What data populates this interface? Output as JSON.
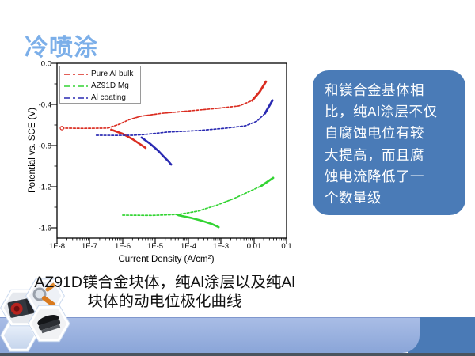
{
  "title": {
    "text": "冷喷涂",
    "color": "#7cafe9"
  },
  "chart_data": {
    "type": "line",
    "title": "",
    "ylabel": "Potential vs. SCE (V)",
    "xlabel_main": "Current Density (A/cm",
    "xlabel_sup": "2",
    "xlabel_close": ")",
    "x_scale": "log",
    "xlim": [
      1e-08,
      0.1
    ],
    "ylim": [
      -1.7,
      0
    ],
    "x_ticks": [
      "1E-8",
      "1E-7",
      "1E-6",
      "1E-5",
      "1E-4",
      "1E-3",
      "0.01",
      "0.1"
    ],
    "y_ticks": [
      "0.0",
      "-0.4",
      "-0.8",
      "-1.2",
      "-1.6"
    ],
    "grid": false,
    "legend_position": "top-left-inside",
    "legend": [
      {
        "label": "Pure Al bulk",
        "color": "#da2c20"
      },
      {
        "label": "AZ91D Mg",
        "color": "#33d433"
      },
      {
        "label": "Al coating",
        "color": "#2a2ab2"
      }
    ],
    "series": [
      {
        "name": "Pure Al bulk",
        "color": "#da2c20",
        "branches": [
          {
            "dash": true,
            "width": 1.7,
            "tip": 3,
            "start_marker": true,
            "points": [
              [
                -7.85,
                -0.63
              ],
              [
                -7.2,
                -0.632
              ],
              [
                -6.45,
                -0.63
              ],
              [
                -6.1,
                -0.592
              ],
              [
                -5.8,
                -0.548
              ],
              [
                -5.45,
                -0.515
              ],
              [
                -4.8,
                -0.486
              ],
              [
                -3.95,
                -0.462
              ],
              [
                -3.1,
                -0.438
              ],
              [
                -2.45,
                -0.415
              ],
              [
                -2.05,
                -0.362
              ],
              [
                -1.82,
                -0.277
              ],
              [
                -1.63,
                -0.178
              ]
            ]
          },
          {
            "dash": false,
            "width": 2.6,
            "points": [
              [
                -6.35,
                -0.645
              ],
              [
                -6.0,
                -0.685
              ],
              [
                -5.7,
                -0.737
              ],
              [
                -5.48,
                -0.784
              ],
              [
                -5.3,
                -0.823
              ]
            ]
          }
        ]
      },
      {
        "name": "AZ91D Mg",
        "color": "#33d433",
        "branches": [
          {
            "dash": true,
            "width": 1.7,
            "tip": 2,
            "points": [
              [
                -6.0,
                -1.477
              ],
              [
                -5.1,
                -1.479
              ],
              [
                -4.3,
                -1.47
              ],
              [
                -3.7,
                -1.438
              ],
              [
                -3.1,
                -1.377
              ],
              [
                -2.6,
                -1.315
              ],
              [
                -2.13,
                -1.246
              ],
              [
                -1.77,
                -1.192
              ],
              [
                -1.41,
                -1.115
              ]
            ]
          },
          {
            "dash": false,
            "width": 2.6,
            "points": [
              [
                -4.3,
                -1.478
              ],
              [
                -3.93,
                -1.502
              ],
              [
                -3.57,
                -1.532
              ],
              [
                -3.28,
                -1.562
              ],
              [
                -3.07,
                -1.593
              ]
            ]
          }
        ]
      },
      {
        "name": "Al coating",
        "color": "#2a2ab2",
        "branches": [
          {
            "dash": true,
            "width": 1.7,
            "tip": 3,
            "points": [
              [
                -6.8,
                -0.7
              ],
              [
                -6.2,
                -0.701
              ],
              [
                -5.7,
                -0.7
              ],
              [
                -5.35,
                -0.693
              ],
              [
                -4.65,
                -0.669
              ],
              [
                -3.7,
                -0.654
              ],
              [
                -2.85,
                -0.631
              ],
              [
                -2.25,
                -0.608
              ],
              [
                -1.9,
                -0.562
              ],
              [
                -1.66,
                -0.487
              ],
              [
                -1.52,
                -0.41
              ],
              [
                -1.43,
                -0.36
              ]
            ]
          },
          {
            "dash": false,
            "width": 2.6,
            "points": [
              [
                -5.42,
                -0.722
              ],
              [
                -5.15,
                -0.785
              ],
              [
                -4.9,
                -0.855
              ],
              [
                -4.72,
                -0.916
              ],
              [
                -4.6,
                -0.955
              ],
              [
                -4.52,
                -0.985
              ]
            ]
          }
        ]
      }
    ]
  },
  "note_box": {
    "bg": "#4a7bb7",
    "lines": [
      "和镁合金基体相",
      "比，纯Al涂层不仅",
      "自腐蚀电位有较",
      "大提高，而且腐",
      "蚀电流降低了一",
      "个数量级"
    ]
  },
  "caption": {
    "line1": "AZ91D镁合金块体，纯Al涂层以及纯Al",
    "line2": "块体的动电位极化曲线"
  }
}
